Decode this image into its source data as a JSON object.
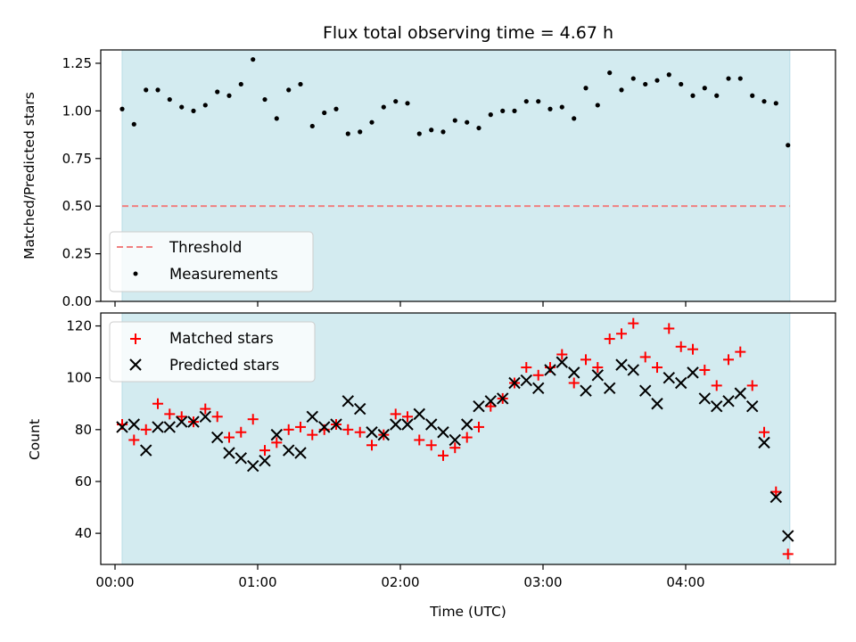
{
  "chart_data": [
    {
      "type": "scatter",
      "title": "Flux total observing time = 4.67 h",
      "ylabel": "Matched/Predicted stars",
      "xlabel": "",
      "x_unit": "hours since 00:00 UTC",
      "xlim": [
        -0.1,
        5.05
      ],
      "ylim": [
        0,
        1.32
      ],
      "yticks": [
        0.0,
        0.25,
        0.5,
        0.75,
        1.0,
        1.25
      ],
      "ytick_labels": [
        "0.00",
        "0.25",
        "0.50",
        "0.75",
        "1.00",
        "1.25"
      ],
      "shaded_span": {
        "x": [
          0.05,
          4.73
        ],
        "color": "#d3ebf0"
      },
      "threshold": {
        "name": "Threshold",
        "value": 0.5,
        "color": "#f08080"
      },
      "legend": {
        "placement": "lower-left",
        "entries": [
          "Threshold",
          "Measurements"
        ]
      },
      "series": [
        {
          "name": "Measurements",
          "marker": "dot",
          "color": "#000000",
          "x": [
            0.05,
            0.133,
            0.217,
            0.3,
            0.383,
            0.467,
            0.55,
            0.633,
            0.717,
            0.8,
            0.883,
            0.967,
            1.05,
            1.133,
            1.217,
            1.3,
            1.383,
            1.467,
            1.55,
            1.633,
            1.717,
            1.8,
            1.883,
            1.967,
            2.05,
            2.133,
            2.217,
            2.3,
            2.383,
            2.467,
            2.55,
            2.633,
            2.717,
            2.8,
            2.883,
            2.967,
            3.05,
            3.133,
            3.217,
            3.3,
            3.383,
            3.467,
            3.55,
            3.633,
            3.717,
            3.8,
            3.883,
            3.967,
            4.05,
            4.133,
            4.217,
            4.3,
            4.383,
            4.467,
            4.55,
            4.633,
            4.717
          ],
          "y": [
            1.01,
            0.93,
            1.11,
            1.11,
            1.06,
            1.02,
            1.0,
            1.03,
            1.1,
            1.08,
            1.14,
            1.27,
            1.06,
            0.96,
            1.11,
            1.14,
            0.92,
            0.99,
            1.01,
            0.88,
            0.89,
            0.94,
            1.02,
            1.05,
            1.04,
            0.88,
            0.9,
            0.89,
            0.95,
            0.94,
            0.91,
            0.98,
            1.0,
            1.0,
            1.05,
            1.05,
            1.01,
            1.02,
            0.96,
            1.12,
            1.03,
            1.2,
            1.11,
            1.17,
            1.14,
            1.16,
            1.19,
            1.14,
            1.08,
            1.12,
            1.08,
            1.17,
            1.17,
            1.08,
            1.05,
            1.04,
            0.82
          ]
        }
      ]
    },
    {
      "type": "scatter",
      "title": "",
      "ylabel": "Count",
      "xlabel": "Time (UTC)",
      "x_unit": "hours since 00:00 UTC",
      "xlim": [
        -0.1,
        5.05
      ],
      "ylim": [
        28,
        125
      ],
      "yticks": [
        40,
        60,
        80,
        100,
        120
      ],
      "ytick_labels": [
        "40",
        "60",
        "80",
        "100",
        "120"
      ],
      "xticks": [
        0,
        1,
        2,
        3,
        4
      ],
      "xtick_labels": [
        "00:00",
        "01:00",
        "02:00",
        "03:00",
        "04:00"
      ],
      "shaded_span": {
        "x": [
          0.05,
          4.73
        ],
        "color": "#d3ebf0"
      },
      "legend": {
        "placement": "upper-left",
        "entries": [
          "Matched stars",
          "Predicted stars"
        ]
      },
      "series": [
        {
          "name": "Matched stars",
          "marker": "plus",
          "color": "#ff0000",
          "x": [
            0.05,
            0.133,
            0.217,
            0.3,
            0.383,
            0.467,
            0.55,
            0.633,
            0.717,
            0.8,
            0.883,
            0.967,
            1.05,
            1.133,
            1.217,
            1.3,
            1.383,
            1.467,
            1.55,
            1.633,
            1.717,
            1.8,
            1.883,
            1.967,
            2.05,
            2.133,
            2.217,
            2.3,
            2.383,
            2.467,
            2.55,
            2.633,
            2.717,
            2.8,
            2.883,
            2.967,
            3.05,
            3.133,
            3.217,
            3.3,
            3.383,
            3.467,
            3.55,
            3.633,
            3.717,
            3.8,
            3.883,
            3.967,
            4.05,
            4.133,
            4.217,
            4.3,
            4.383,
            4.467,
            4.55,
            4.633,
            4.717
          ],
          "y": [
            82,
            76,
            80,
            90,
            86,
            85,
            83,
            88,
            85,
            77,
            79,
            84,
            72,
            75,
            80,
            81,
            78,
            80,
            82,
            80,
            79,
            74,
            78,
            86,
            85,
            76,
            74,
            70,
            73,
            77,
            81,
            89,
            92,
            98,
            104,
            101,
            104,
            109,
            98,
            107,
            104,
            115,
            117,
            121,
            108,
            104,
            119,
            112,
            111,
            103,
            97,
            107,
            110,
            97,
            79,
            56,
            32
          ]
        },
        {
          "name": "Predicted stars",
          "marker": "x",
          "color": "#000000",
          "x": [
            0.05,
            0.133,
            0.217,
            0.3,
            0.383,
            0.467,
            0.55,
            0.633,
            0.717,
            0.8,
            0.883,
            0.967,
            1.05,
            1.133,
            1.217,
            1.3,
            1.383,
            1.467,
            1.55,
            1.633,
            1.717,
            1.8,
            1.883,
            1.967,
            2.05,
            2.133,
            2.217,
            2.3,
            2.383,
            2.467,
            2.55,
            2.633,
            2.717,
            2.8,
            2.883,
            2.967,
            3.05,
            3.133,
            3.217,
            3.3,
            3.383,
            3.467,
            3.55,
            3.633,
            3.717,
            3.8,
            3.883,
            3.967,
            4.05,
            4.133,
            4.217,
            4.3,
            4.383,
            4.467,
            4.55,
            4.633,
            4.717
          ],
          "y": [
            81,
            82,
            72,
            81,
            81,
            83,
            83,
            85,
            77,
            71,
            69,
            66,
            68,
            78,
            72,
            71,
            85,
            81,
            82,
            91,
            88,
            79,
            78,
            82,
            82,
            86,
            82,
            79,
            76,
            82,
            89,
            91,
            92,
            98,
            99,
            96,
            103,
            106,
            102,
            95,
            101,
            96,
            105,
            103,
            95,
            90,
            100,
            98,
            102,
            92,
            89,
            91,
            94,
            89,
            75,
            54,
            39
          ]
        }
      ]
    }
  ]
}
